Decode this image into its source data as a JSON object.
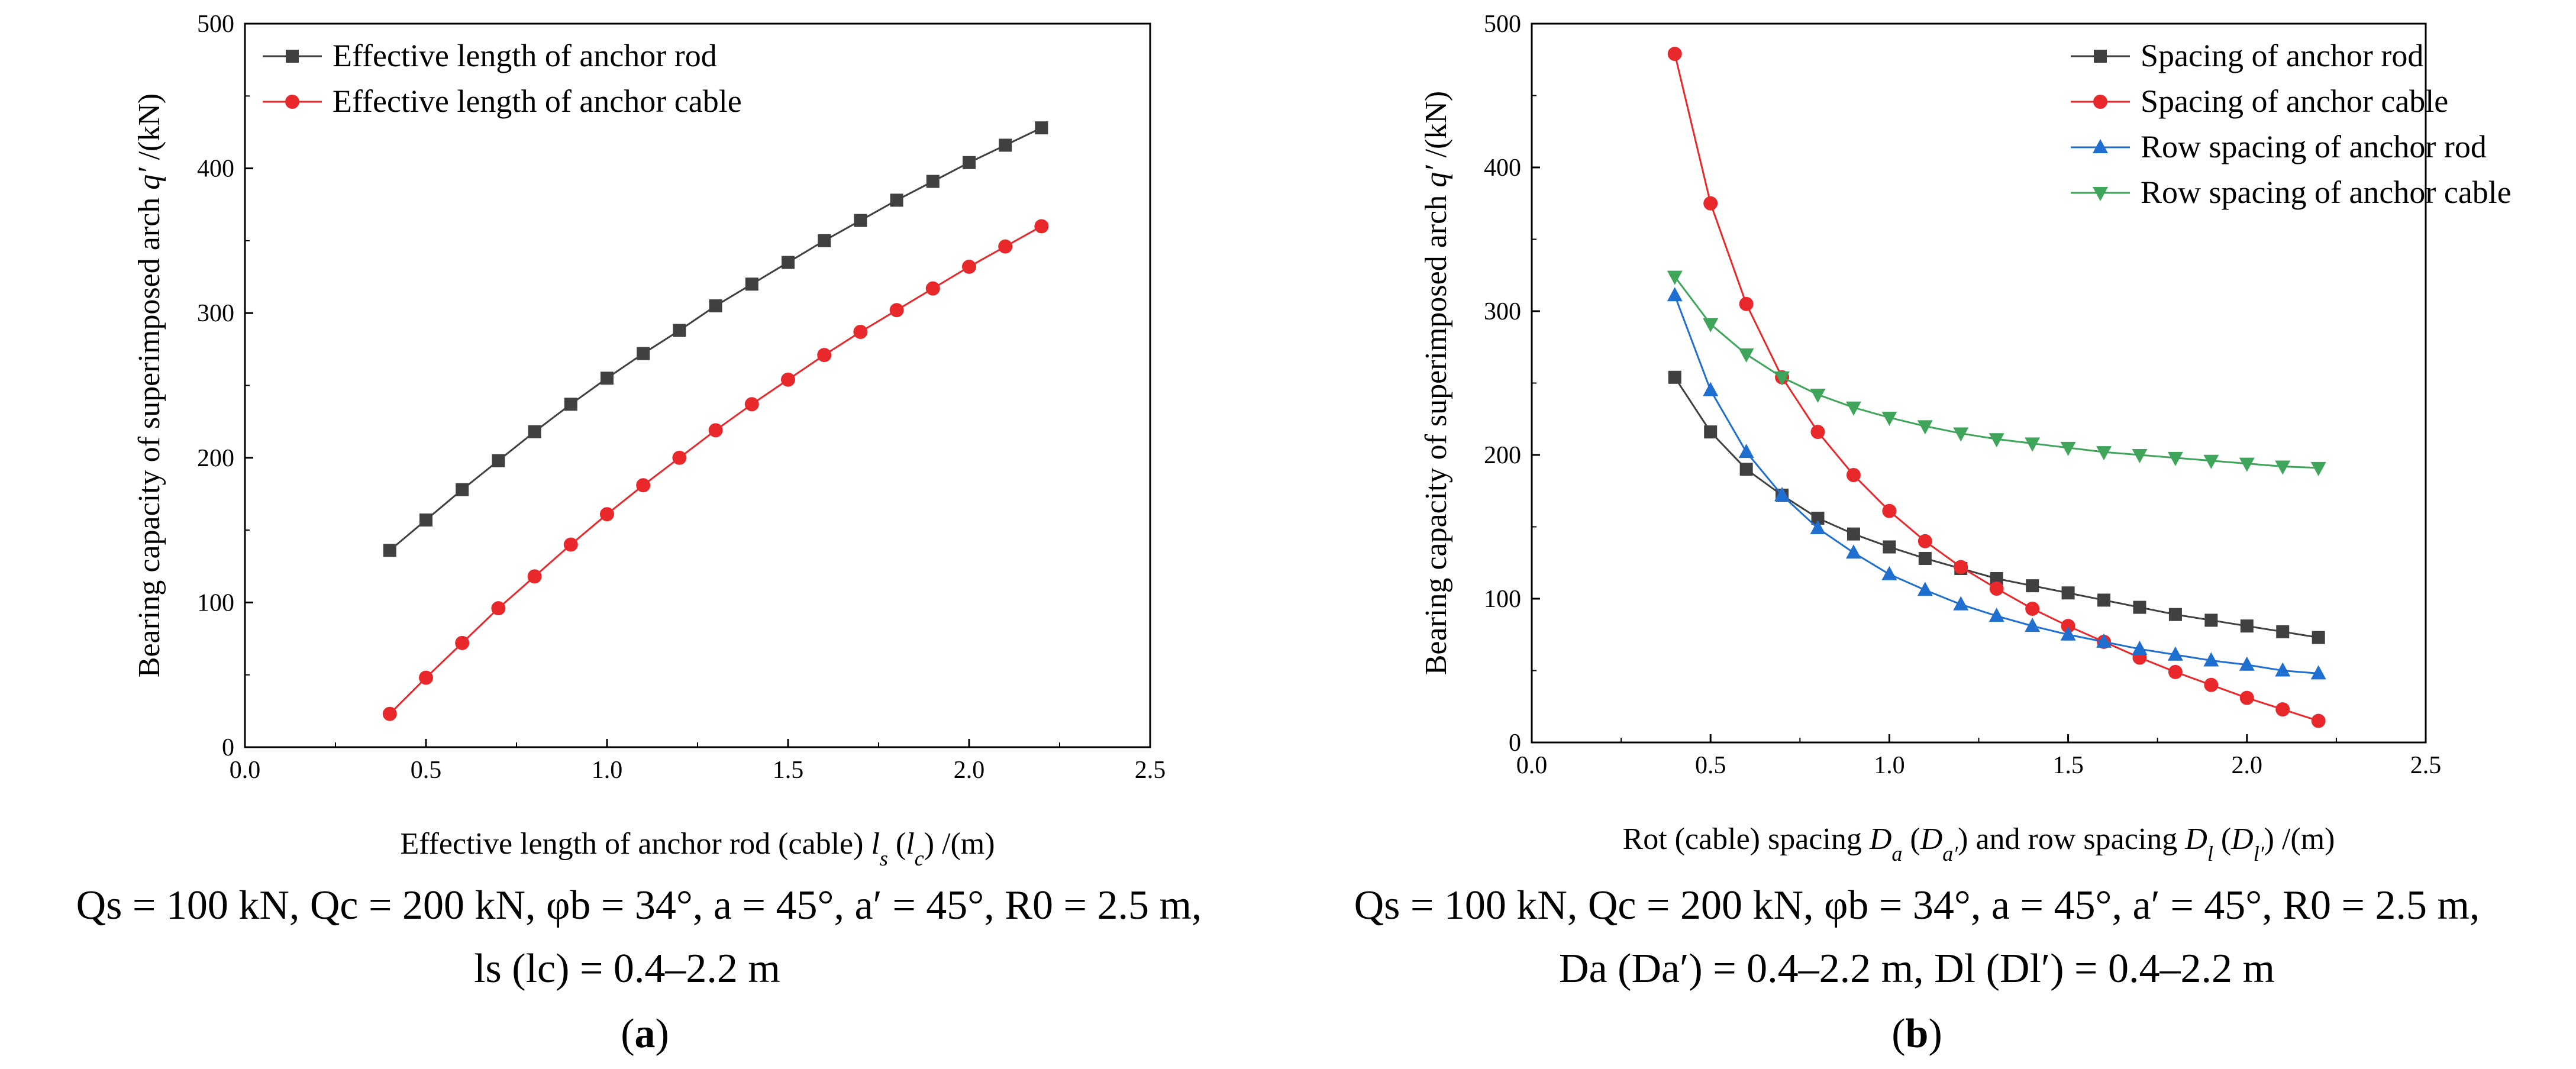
{
  "chart_data": [
    {
      "type": "line",
      "panel_label": "a",
      "xlabel": "Effective length of anchor rod (cable) l_s (l_c) /(m)",
      "ylabel": "Bearing capacity of superimposed arch q′ /(kN)",
      "xlim": [
        0,
        2.5
      ],
      "ylim": [
        0,
        500
      ],
      "xticks": [
        "0.0",
        "0.5",
        "1.0",
        "1.5",
        "2.0",
        "2.5"
      ],
      "yticks": [
        "0",
        "100",
        "200",
        "300",
        "400",
        "500"
      ],
      "legend_position": "top-left",
      "series": [
        {
          "name": "Effective length of anchor rod",
          "color": "#404040",
          "marker": "square",
          "x": [
            0.4,
            0.5,
            0.6,
            0.7,
            0.8,
            0.9,
            1.0,
            1.1,
            1.2,
            1.3,
            1.4,
            1.5,
            1.6,
            1.7,
            1.8,
            1.9,
            2.0,
            2.1,
            2.2
          ],
          "y": [
            136,
            157,
            178,
            198,
            218,
            237,
            255,
            272,
            288,
            305,
            320,
            335,
            350,
            364,
            378,
            391,
            404,
            416,
            428
          ]
        },
        {
          "name": "Effective length of anchor cable",
          "color": "#e8282a",
          "marker": "circle",
          "x": [
            0.4,
            0.5,
            0.6,
            0.7,
            0.8,
            0.9,
            1.0,
            1.1,
            1.2,
            1.3,
            1.4,
            1.5,
            1.6,
            1.7,
            1.8,
            1.9,
            2.0,
            2.1,
            2.2
          ],
          "y": [
            23,
            48,
            72,
            96,
            118,
            140,
            161,
            181,
            200,
            219,
            237,
            254,
            271,
            287,
            302,
            317,
            332,
            346,
            360
          ]
        }
      ]
    },
    {
      "type": "line",
      "panel_label": "b",
      "xlabel": "Rot (cable) spacing D_a (D_a′) and row spacing D_l (D_l′) /(m)",
      "ylabel": "Bearing capacity of superimposed arch q′ /(kN)",
      "xlim": [
        0,
        2.5
      ],
      "ylim": [
        0,
        500
      ],
      "xticks": [
        "0.0",
        "0.5",
        "1.0",
        "1.5",
        "2.0",
        "2.5"
      ],
      "yticks": [
        "0",
        "100",
        "200",
        "300",
        "400",
        "500"
      ],
      "legend_position": "top-right",
      "series": [
        {
          "name": "Spacing of anchor rod",
          "color": "#404040",
          "marker": "square",
          "x": [
            0.4,
            0.5,
            0.6,
            0.7,
            0.8,
            0.9,
            1.0,
            1.1,
            1.2,
            1.3,
            1.4,
            1.5,
            1.6,
            1.7,
            1.8,
            1.9,
            2.0,
            2.1,
            2.2
          ],
          "y": [
            254,
            216,
            190,
            172,
            156,
            145,
            136,
            128,
            121,
            114,
            109,
            104,
            99,
            94,
            89,
            85,
            81,
            77,
            73
          ]
        },
        {
          "name": "Spacing of anchor cable",
          "color": "#e8282a",
          "marker": "circle",
          "x": [
            0.4,
            0.5,
            0.6,
            0.7,
            0.8,
            0.9,
            1.0,
            1.1,
            1.2,
            1.3,
            1.4,
            1.5,
            1.6,
            1.7,
            1.8,
            1.9,
            2.0,
            2.1,
            2.2
          ],
          "y": [
            479,
            375,
            305,
            254,
            216,
            186,
            161,
            140,
            122,
            107,
            93,
            81,
            70,
            59,
            49,
            40,
            31,
            23,
            15
          ]
        },
        {
          "name": "Row spacing of anchor rod",
          "color": "#1f6fd1",
          "marker": "triangle-up",
          "x": [
            0.4,
            0.5,
            0.6,
            0.7,
            0.8,
            0.9,
            1.0,
            1.1,
            1.2,
            1.3,
            1.4,
            1.5,
            1.6,
            1.7,
            1.8,
            1.9,
            2.0,
            2.1,
            2.2
          ],
          "y": [
            311,
            245,
            202,
            172,
            149,
            132,
            117,
            106,
            96,
            88,
            81,
            75,
            70,
            65,
            61,
            57,
            54,
            50,
            48
          ]
        },
        {
          "name": "Row spacing of anchor cable",
          "color": "#3fa55a",
          "marker": "triangle-down",
          "x": [
            0.4,
            0.5,
            0.6,
            0.7,
            0.8,
            0.9,
            1.0,
            1.1,
            1.2,
            1.3,
            1.4,
            1.5,
            1.6,
            1.7,
            1.8,
            1.9,
            2.0,
            2.1,
            2.2
          ],
          "y": [
            324,
            291,
            270,
            254,
            242,
            233,
            226,
            220,
            215,
            211,
            208,
            205,
            202,
            200,
            198,
            196,
            194,
            192,
            191
          ]
        }
      ]
    }
  ],
  "captions": {
    "a_line1": "Qs = 100 kN, Qc = 200 kN, φb = 34°, a = 45°, a′ = 45°, R0 = 2.5 m,",
    "a_line2": "ls (lc) = 0.4–2.2 m",
    "b_line1": "Qs = 100 kN, Qc = 200 kN, φb = 34°, a = 45°, a′ = 45°, R0 = 2.5 m,",
    "b_line2": "Da (Da′) = 0.4–2.2 m, Dl (Dl′) = 0.4–2.2 m",
    "label_a": "a",
    "label_b": "b"
  }
}
